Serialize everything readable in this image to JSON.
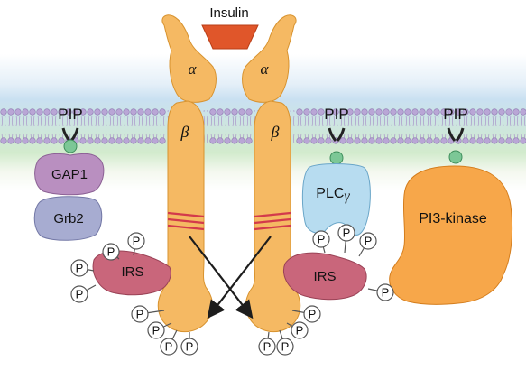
{
  "ligand": {
    "label": "Insulin"
  },
  "receptor": {
    "alpha_label": "α",
    "beta_label": "β"
  },
  "pip_label": "PIP",
  "phospho_label": "P",
  "proteins": {
    "gap1": "GAP1",
    "grb2": "Grb2",
    "irs": "IRS",
    "plc": "PLC",
    "plc_sub": "γ",
    "pi3k": "PI3-kinase"
  },
  "colors": {
    "receptor": "#f5b963",
    "insulin": "#e0562a",
    "gap1": "#b98fc0",
    "grb2": "#a7acd1",
    "irs": "#c9667b",
    "plc": "#b7dcf0",
    "pi3k": "#f7a74a",
    "pip_head": "#7cc796",
    "membrane_head": "#b9a6d6",
    "mutation_bands": "#d33a4b"
  }
}
